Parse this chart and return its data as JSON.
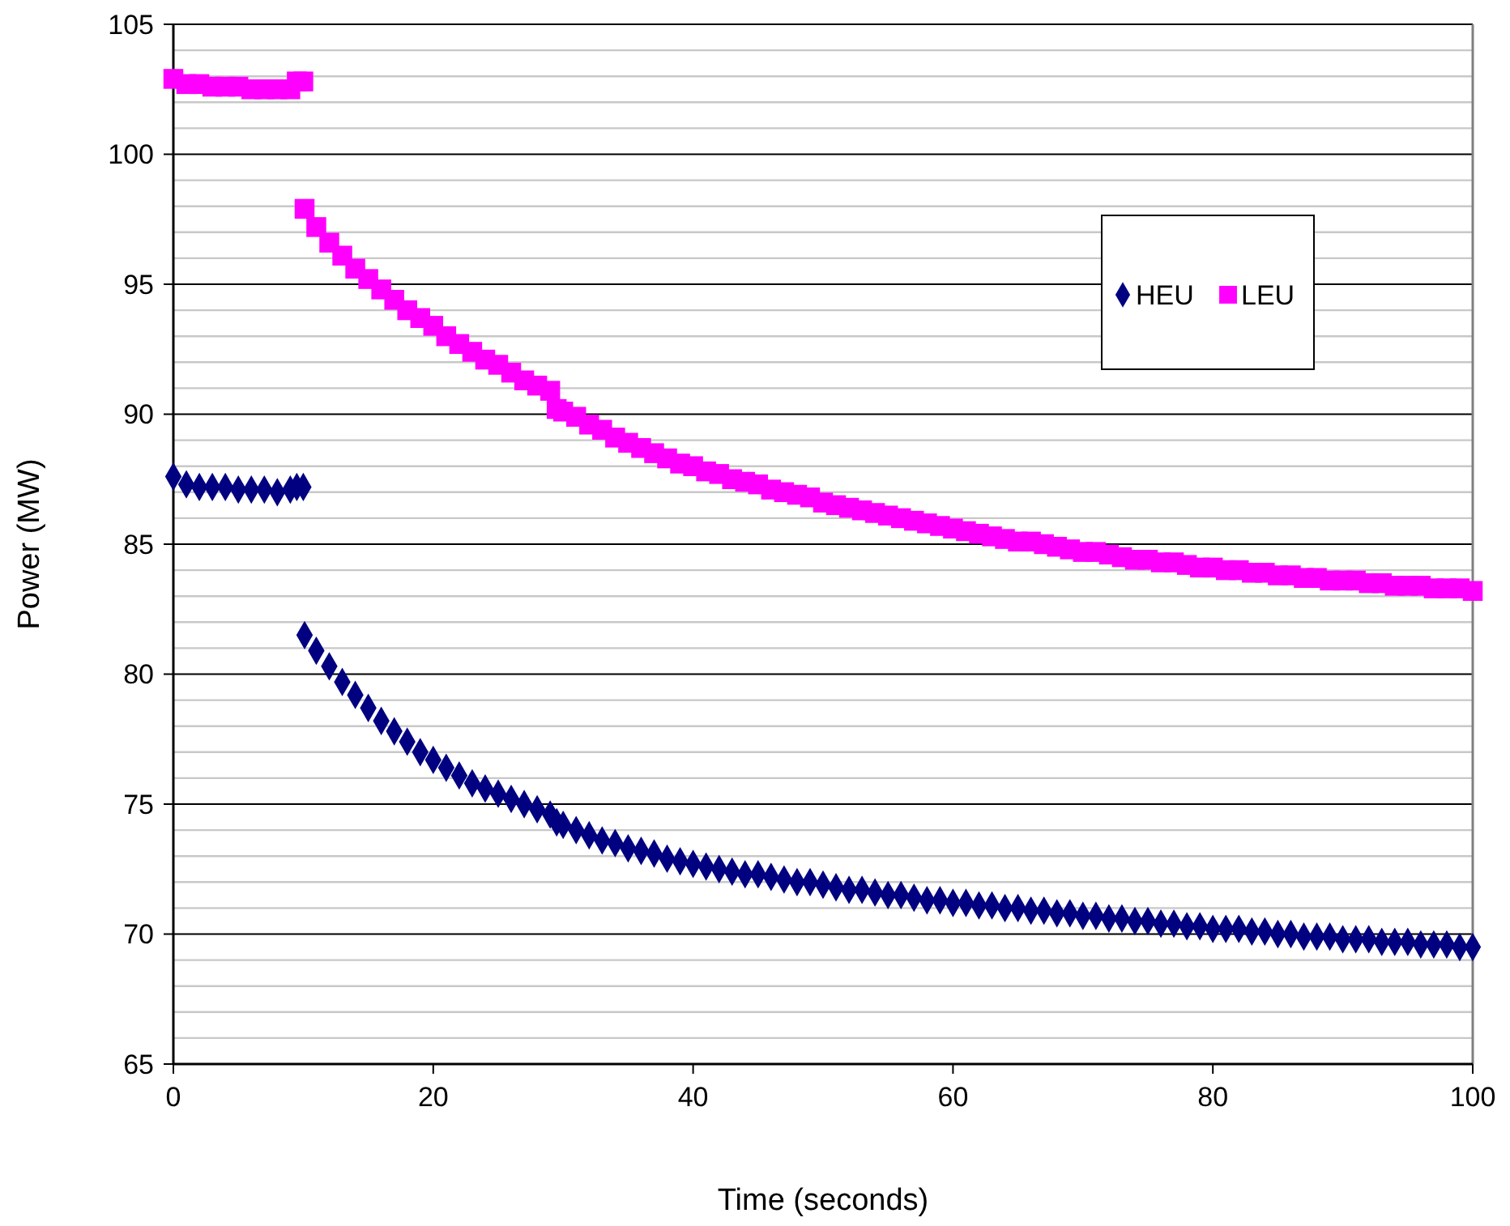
{
  "chart_data": {
    "type": "scatter",
    "xlabel": "Time (seconds)",
    "ylabel": "Power (MW)",
    "xlim": [
      0,
      100
    ],
    "xticks": [
      0,
      20,
      40,
      60,
      80,
      100
    ],
    "ylim": [
      65,
      105
    ],
    "yticks": [
      65,
      {
        "value": 66,
        "label": null
      },
      {
        "value": 67,
        "label": null
      },
      {
        "value": 68,
        "label": null
      },
      {
        "value": 69,
        "label": null
      },
      70,
      {
        "value": 71,
        "label": null
      },
      {
        "value": 72,
        "label": null
      },
      {
        "value": 73,
        "label": null
      },
      {
        "value": 74,
        "label": null
      },
      75,
      {
        "value": 76,
        "label": null
      },
      {
        "value": 77,
        "label": null
      },
      {
        "value": 78,
        "label": null
      },
      {
        "value": 79,
        "label": null
      },
      80,
      {
        "value": 81,
        "label": null
      },
      {
        "value": 82,
        "label": null
      },
      {
        "value": 83,
        "label": null
      },
      {
        "value": 84,
        "label": null
      },
      85,
      {
        "value": 86,
        "label": null
      },
      {
        "value": 87,
        "label": null
      },
      {
        "value": 88,
        "label": null
      },
      {
        "value": 89,
        "label": null
      },
      90,
      {
        "value": 91,
        "label": null
      },
      {
        "value": 92,
        "label": null
      },
      {
        "value": 93,
        "label": null
      },
      {
        "value": 94,
        "label": null
      },
      95,
      {
        "value": 96,
        "label": null
      },
      {
        "value": 97,
        "label": null
      },
      {
        "value": 98,
        "label": null
      },
      {
        "value": 99,
        "label": null
      },
      100,
      {
        "value": 101,
        "label": null
      },
      {
        "value": 102,
        "label": null
      },
      {
        "value": 103,
        "label": null
      },
      {
        "value": 104,
        "label": null
      },
      105
    ],
    "grid": "y",
    "legend": "top right",
    "series": [
      {
        "name": "HEU",
        "color": "#000080",
        "marker": "diamond",
        "x": [
          0,
          1,
          2,
          3,
          4,
          5,
          6,
          7,
          8,
          9,
          9.5,
          10,
          10.1,
          11,
          12,
          13,
          14,
          15,
          16,
          17,
          18,
          19,
          20,
          21,
          22,
          23,
          24,
          25,
          26,
          27,
          28,
          29,
          29.5,
          30,
          31,
          32,
          33,
          34,
          35,
          36,
          37,
          38,
          39,
          40,
          41,
          42,
          43,
          44,
          45,
          46,
          47,
          48,
          49,
          50,
          51,
          52,
          53,
          54,
          55,
          56,
          57,
          58,
          59,
          60,
          61,
          62,
          63,
          64,
          65,
          66,
          67,
          68,
          69,
          70,
          71,
          72,
          73,
          74,
          75,
          76,
          77,
          78,
          79,
          80,
          81,
          82,
          83,
          84,
          85,
          86,
          87,
          88,
          89,
          90,
          91,
          92,
          93,
          94,
          95,
          96,
          97,
          98,
          99,
          100
        ],
        "values": [
          87.6,
          87.3,
          87.2,
          87.2,
          87.2,
          87.1,
          87.1,
          87.1,
          87.0,
          87.1,
          87.2,
          87.2,
          81.5,
          80.9,
          80.3,
          79.7,
          79.2,
          78.7,
          78.2,
          77.8,
          77.4,
          77.0,
          76.7,
          76.4,
          76.1,
          75.8,
          75.6,
          75.4,
          75.2,
          75.0,
          74.8,
          74.6,
          74.3,
          74.2,
          74.0,
          73.8,
          73.6,
          73.5,
          73.3,
          73.2,
          73.1,
          72.9,
          72.8,
          72.7,
          72.6,
          72.5,
          72.4,
          72.3,
          72.3,
          72.2,
          72.1,
          72.0,
          72.0,
          71.9,
          71.8,
          71.7,
          71.7,
          71.6,
          71.5,
          71.5,
          71.4,
          71.3,
          71.3,
          71.2,
          71.2,
          71.1,
          71.1,
          71.0,
          71.0,
          70.9,
          70.9,
          70.8,
          70.8,
          70.7,
          70.7,
          70.6,
          70.6,
          70.5,
          70.5,
          70.4,
          70.4,
          70.3,
          70.3,
          70.2,
          70.2,
          70.2,
          70.1,
          70.1,
          70.0,
          70.0,
          69.9,
          69.9,
          69.9,
          69.8,
          69.8,
          69.8,
          69.7,
          69.7,
          69.7,
          69.6,
          69.6,
          69.6,
          69.5,
          69.5
        ]
      },
      {
        "name": "LEU",
        "color": "#ff00ff",
        "marker": "square",
        "x": [
          0,
          1,
          2,
          3,
          4,
          5,
          6,
          7,
          8,
          9,
          9.5,
          10,
          10.1,
          11,
          12,
          13,
          14,
          15,
          16,
          17,
          18,
          19,
          20,
          21,
          22,
          23,
          24,
          25,
          26,
          27,
          28,
          29,
          29.5,
          30,
          31,
          32,
          33,
          34,
          35,
          36,
          37,
          38,
          39,
          40,
          41,
          42,
          43,
          44,
          45,
          46,
          47,
          48,
          49,
          50,
          51,
          52,
          53,
          54,
          55,
          56,
          57,
          58,
          59,
          60,
          61,
          62,
          63,
          64,
          65,
          66,
          67,
          68,
          69,
          70,
          71,
          72,
          73,
          74,
          75,
          76,
          77,
          78,
          79,
          80,
          81,
          82,
          83,
          84,
          85,
          86,
          87,
          88,
          89,
          90,
          91,
          92,
          93,
          94,
          95,
          96,
          97,
          98,
          99,
          100
        ],
        "values": [
          102.9,
          102.7,
          102.7,
          102.6,
          102.6,
          102.6,
          102.5,
          102.5,
          102.5,
          102.5,
          102.8,
          102.8,
          97.9,
          97.2,
          96.6,
          96.1,
          95.6,
          95.2,
          94.8,
          94.4,
          94.0,
          93.7,
          93.4,
          93.0,
          92.7,
          92.4,
          92.1,
          91.9,
          91.6,
          91.3,
          91.1,
          90.9,
          90.2,
          90.1,
          89.9,
          89.6,
          89.4,
          89.1,
          88.9,
          88.7,
          88.5,
          88.3,
          88.1,
          88.0,
          87.8,
          87.7,
          87.5,
          87.4,
          87.3,
          87.1,
          87.0,
          86.9,
          86.8,
          86.6,
          86.5,
          86.4,
          86.3,
          86.2,
          86.1,
          86.0,
          85.9,
          85.8,
          85.7,
          85.6,
          85.5,
          85.4,
          85.3,
          85.2,
          85.1,
          85.1,
          85.0,
          84.9,
          84.8,
          84.7,
          84.7,
          84.6,
          84.5,
          84.4,
          84.4,
          84.3,
          84.3,
          84.2,
          84.1,
          84.1,
          84.0,
          84.0,
          83.9,
          83.9,
          83.8,
          83.8,
          83.7,
          83.7,
          83.6,
          83.6,
          83.6,
          83.5,
          83.5,
          83.4,
          83.4,
          83.4,
          83.3,
          83.3,
          83.3,
          83.2
        ]
      }
    ]
  }
}
